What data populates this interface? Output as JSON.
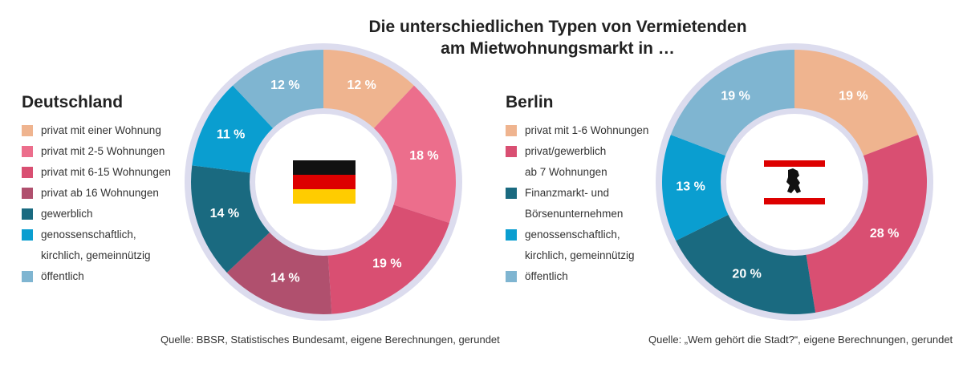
{
  "title": "Die unterschiedlichen Typen von Vermietenden\nam Mietwohnungsmarkt in …",
  "chart_data": [
    {
      "type": "donut",
      "title": "Deutschland",
      "categories": [
        "privat mit einer Wohnung",
        "privat mit 2-5 Wohnungen",
        "privat mit 6-15 Wohnungen",
        "privat ab 16 Wohnungen",
        "gewerblich",
        "genossenschaftlich,\nkirchlich, gemeinnützig",
        "öffentlich"
      ],
      "values": [
        12,
        18,
        19,
        14,
        14,
        11,
        12
      ],
      "value_labels": [
        "12 %",
        "18 %",
        "19 %",
        "14 %",
        "14 %",
        "11 %",
        "12 %"
      ],
      "colors": [
        "#efb48f",
        "#ec6e8c",
        "#d94f72",
        "#b0506e",
        "#1a6a80",
        "#0a9ed0",
        "#7fb5d1"
      ],
      "source": "Quelle: BBSR, Statistisches Bundesamt, eigene Berechnungen, gerundet"
    },
    {
      "type": "donut",
      "title": "Berlin",
      "categories": [
        "privat mit 1-6 Wohnungen",
        "privat/gewerblich\nab 7 Wohnungen",
        "Finanzmarkt- und\nBörsenunternehmen",
        "genossenschaftlich,\nkirchlich, gemeinnützig",
        "öffentlich"
      ],
      "values": [
        19,
        28,
        20,
        13,
        19
      ],
      "value_labels": [
        "19 %",
        "28 %",
        "20 %",
        "13 %",
        "19 %"
      ],
      "colors": [
        "#efb48f",
        "#d94f72",
        "#1a6a80",
        "#0a9ed0",
        "#7fb5d1"
      ],
      "source": "Quelle: „Wem gehört die Stadt?“, eigene Berechnungen, gerundet"
    }
  ]
}
